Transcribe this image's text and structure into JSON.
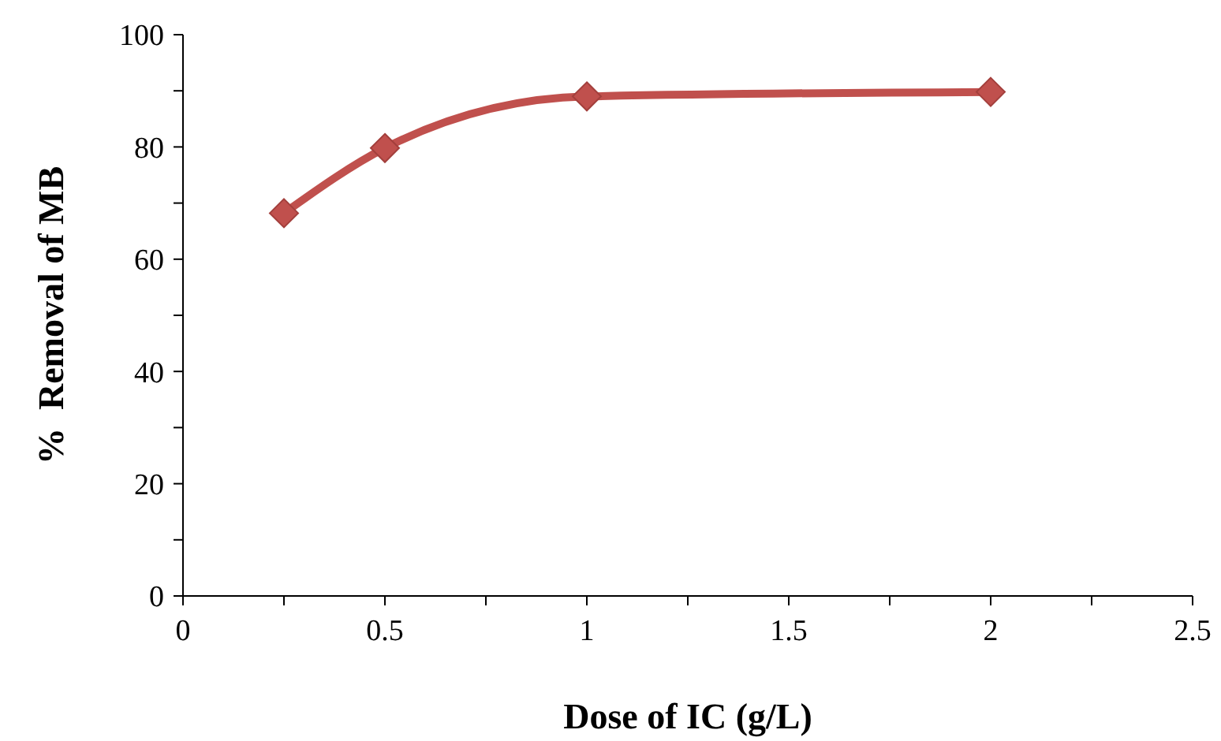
{
  "chart_data": {
    "type": "line",
    "xlabel": "Dose of IC (g/L)",
    "ylabel": "%  Removal of MB",
    "x": [
      0.25,
      0.5,
      1,
      2
    ],
    "series": [
      {
        "color": "#c0504d",
        "values": [
          68.2,
          79.8,
          89,
          89.8
        ]
      }
    ],
    "marker": "diamond",
    "line_style": "solid",
    "grid": false,
    "xlim": [
      0,
      2.5
    ],
    "xticks": [
      0,
      {
        "value": 0.25,
        "label": null
      },
      0.5,
      {
        "value": 0.75,
        "label": null
      },
      1,
      {
        "value": 1.25,
        "label": null
      },
      1.5,
      {
        "value": 1.75,
        "label": null
      },
      2,
      {
        "value": 2.25,
        "label": null
      },
      2.5
    ],
    "ylim": [
      0,
      100
    ],
    "yticks": [
      0,
      {
        "value": 10,
        "label": null
      },
      20,
      {
        "value": 30,
        "label": null
      },
      40,
      {
        "value": 50,
        "label": null
      },
      60,
      {
        "value": 70,
        "label": null
      },
      80,
      {
        "value": 90,
        "label": null
      },
      100
    ]
  }
}
